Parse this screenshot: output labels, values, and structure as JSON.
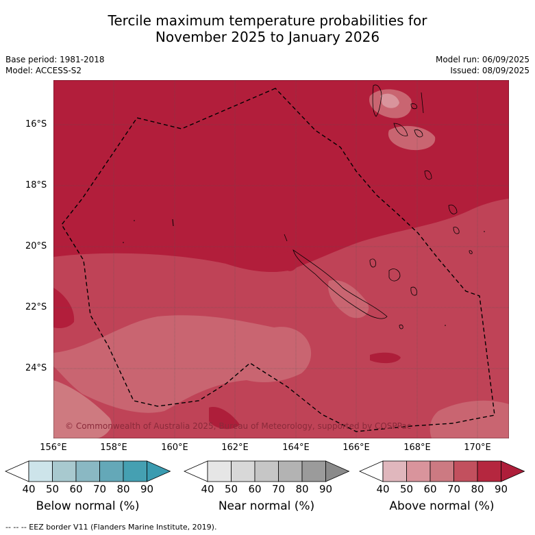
{
  "title_line1": "Tercile maximum temperature probabilities for",
  "title_line2": "November 2025 to January 2026",
  "base_period": "Base period: 1981-2018",
  "model": "Model: ACCESS-S2",
  "model_run": "Model run: 06/09/2025",
  "issued": "Issued: 08/09/2025",
  "lat_labels": [
    "16°S",
    "18°S",
    "20°S",
    "22°S",
    "24°S"
  ],
  "lon_labels": [
    "156°E",
    "158°E",
    "160°E",
    "162°E",
    "164°E",
    "166°E",
    "168°E",
    "170°E"
  ],
  "copyright": "© Commonwealth of Australia 2025, Bureau of Meteorology, supported by COSPPac",
  "legends": [
    {
      "title": "Below normal (%)",
      "ticks": [
        "40",
        "50",
        "60",
        "70",
        "80",
        "90"
      ],
      "colors": [
        "#ffffff",
        "#cde4ea",
        "#a8c9cf",
        "#8ab8c3",
        "#64a8b8",
        "#45a0b2",
        "#3a9bb0"
      ]
    },
    {
      "title": "Near normal (%)",
      "ticks": [
        "40",
        "50",
        "60",
        "70",
        "80",
        "90"
      ],
      "colors": [
        "#ffffff",
        "#e6e6e6",
        "#d8d8d8",
        "#c6c6c6",
        "#b3b3b3",
        "#9b9b9b",
        "#8a8a8a"
      ]
    },
    {
      "title": "Above normal (%)",
      "ticks": [
        "40",
        "50",
        "60",
        "70",
        "80",
        "90"
      ],
      "colors": [
        "#ffffff",
        "#e0b7bd",
        "#d9949c",
        "#cc7a82",
        "#c2505e",
        "#b5273f",
        "#ae1e3a"
      ]
    }
  ],
  "footnote": "--  --  -- EEZ border V11 (Flanders Marine Institute, 2019).",
  "palette": {
    "above_90": "#ae1e3a",
    "above_80": "#b3203d",
    "above_70": "#bf4357",
    "above_60": "#ce7a80",
    "above_50": "#d9949c"
  }
}
